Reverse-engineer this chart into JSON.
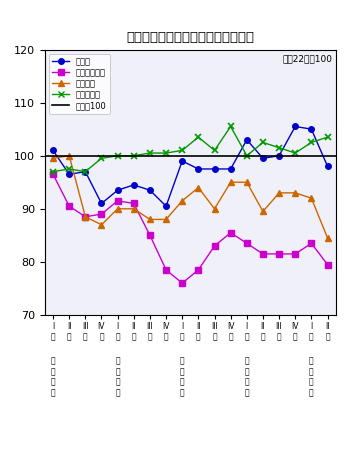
{
  "title": "主要業種の生産（季節調整済指数）",
  "subtitle": "平成22年＝100",
  "ylim": [
    70,
    120
  ],
  "yticks": [
    70,
    80,
    90,
    100,
    110,
    120
  ],
  "baseline": 100,
  "year_positions": [
    0,
    4,
    8,
    12,
    16
  ],
  "year_names": [
    "二十三年",
    "二十四年",
    "二十五年",
    "二十六年",
    "二十七年"
  ],
  "quarter_labels": [
    "I\n期",
    "II\n期",
    "III\n期",
    "IV\n期",
    "I\n期",
    "II\n期",
    "III\n期",
    "IV\n期",
    "I\n期",
    "II\n期",
    "III\n期",
    "IV\n期",
    "I\n期",
    "II\n期",
    "III\n期",
    "IV\n期",
    "I\n期",
    "II\n期"
  ],
  "series": {
    "鉄鋼業": {
      "color": "#0000cc",
      "marker": "o",
      "values": [
        101.0,
        96.5,
        97.0,
        91.0,
        93.5,
        94.5,
        93.5,
        90.5,
        99.0,
        97.5,
        97.5,
        97.5,
        103.0,
        99.5,
        100.0,
        105.5,
        105.0,
        98.0
      ]
    },
    "金属製品工業": {
      "color": "#cc00cc",
      "marker": "s",
      "values": [
        96.5,
        90.5,
        88.5,
        89.0,
        91.5,
        91.0,
        85.0,
        78.5,
        76.0,
        78.5,
        83.0,
        85.5,
        83.5,
        81.5,
        81.5,
        81.5,
        83.5,
        79.5
      ]
    },
    "化学工業": {
      "color": "#cc6600",
      "marker": "^",
      "values": [
        99.5,
        100.0,
        88.5,
        87.0,
        90.0,
        90.0,
        88.0,
        88.0,
        91.5,
        94.0,
        90.0,
        95.0,
        95.0,
        89.5,
        93.0,
        93.0,
        92.0,
        84.5
      ]
    },
    "食料品工業": {
      "color": "#009900",
      "marker": "x",
      "values": [
        97.0,
        97.5,
        97.0,
        99.5,
        100.0,
        100.0,
        100.5,
        100.5,
        101.0,
        103.5,
        101.0,
        105.5,
        100.0,
        102.5,
        101.5,
        100.5,
        102.5,
        103.5
      ]
    }
  },
  "series_order": [
    "鉄鋼業",
    "金属製品工業",
    "化学工業",
    "食料品工業"
  ],
  "baseline_color": "#000000",
  "background_color": "#ffffff",
  "plot_bg_color": "#f0f0f8"
}
